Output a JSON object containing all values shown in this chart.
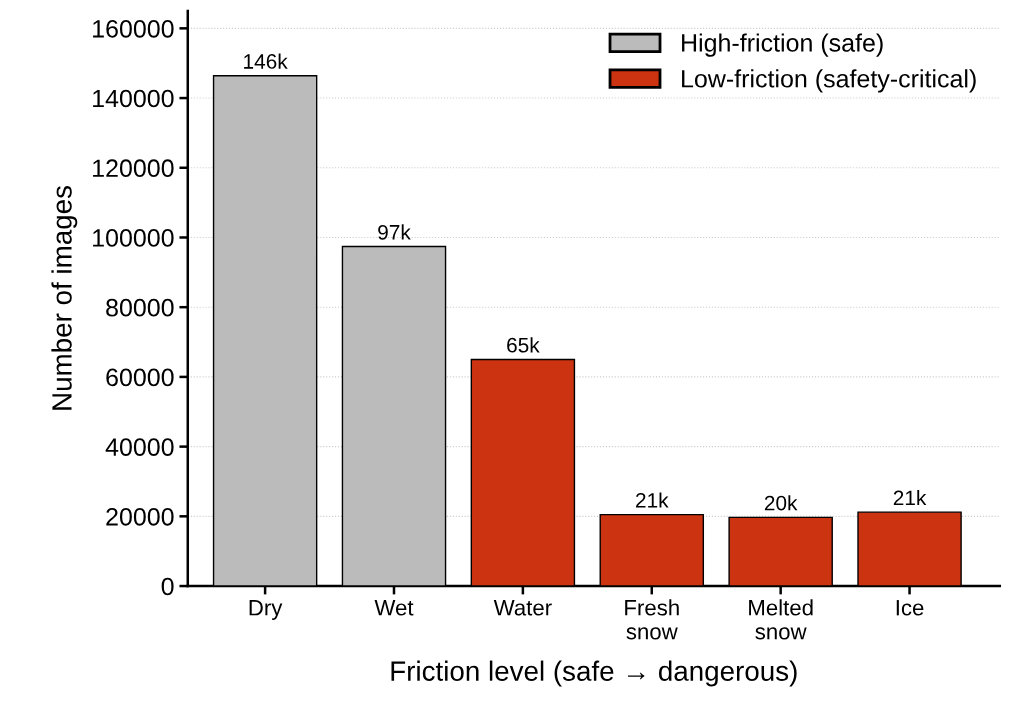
{
  "chart_data": {
    "type": "bar",
    "xlabel": "Friction level (safe → dangerous)",
    "ylabel": "Number of images",
    "categories": [
      "Dry",
      "Wet",
      "Water",
      "Fresh\nsnow",
      "Melted\nsnow",
      "Ice"
    ],
    "series": [
      {
        "name": "High-friction (safe)",
        "color": "#bbbbbb",
        "values": [
          146400,
          97400,
          null,
          null,
          null,
          null
        ],
        "value_labels": [
          "146k",
          "97k",
          null,
          null,
          null,
          null
        ]
      },
      {
        "name": "Low-friction (safety-critical)",
        "color": "#cc3311",
        "values": [
          null,
          null,
          65000,
          20500,
          19700,
          21200
        ],
        "value_labels": [
          null,
          null,
          "65k",
          "21k",
          "20k",
          "21k"
        ]
      }
    ],
    "ylim": [
      0,
      165000
    ],
    "yticks": [
      0,
      20000,
      40000,
      60000,
      80000,
      100000,
      120000,
      140000,
      160000
    ],
    "grid": "y",
    "legend": "top right"
  }
}
